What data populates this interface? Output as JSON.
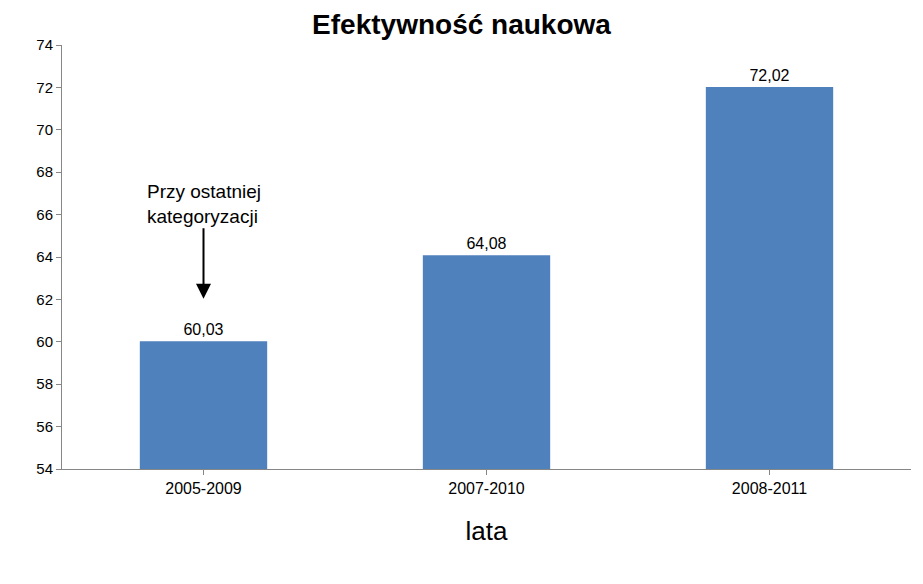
{
  "chart_data": {
    "type": "bar",
    "title": "Efektywność naukowa",
    "x_label": "lata",
    "categories": [
      "2005-2009",
      "2007-2010",
      "2008-2011"
    ],
    "values": [
      60.03,
      64.08,
      72.02
    ],
    "value_labels": [
      "60,03",
      "64,08",
      "72,02"
    ],
    "data_labels": true,
    "color": "#4f81bd",
    "ylim": [
      54,
      74
    ],
    "yticks": [
      54,
      56,
      58,
      60,
      62,
      64,
      66,
      68,
      70,
      72,
      74
    ],
    "grid": false,
    "annotations": [
      {
        "text": "Przy ostatniej\nkategoryzacji",
        "category": "2005-2009"
      }
    ]
  }
}
